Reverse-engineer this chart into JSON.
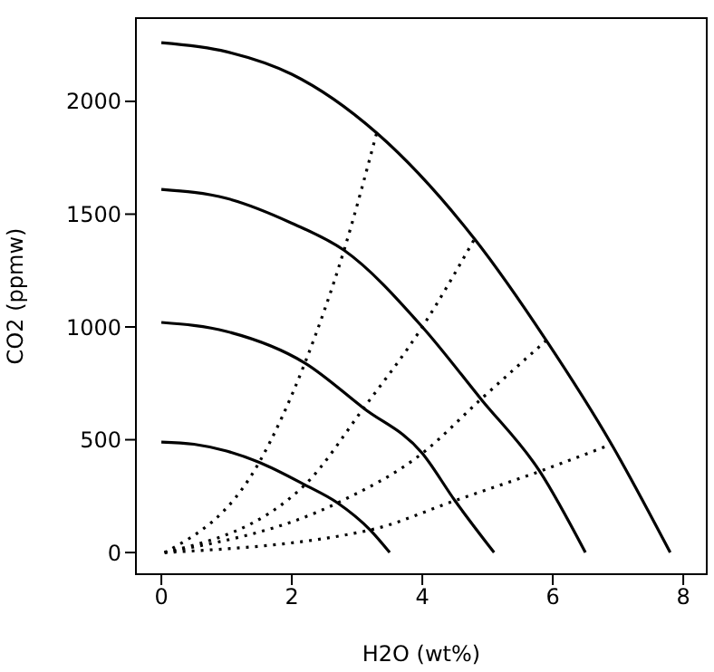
{
  "chart_data": {
    "type": "line",
    "xlabel": "H2O (wt%)",
    "ylabel": "CO2 (ppmw)",
    "xlim": [
      -0.39,
      8.36
    ],
    "ylim": [
      -96,
      2369
    ],
    "xticks": [
      0,
      2,
      4,
      6,
      8
    ],
    "yticks": [
      0,
      500,
      1000,
      1500,
      2000
    ],
    "grid": false,
    "legend": false,
    "marker": "none",
    "series": [
      {
        "color": "#000000",
        "line_style": "solid",
        "x": [
          0,
          0.5,
          1,
          1.5,
          2.2,
          2.7,
          3.2,
          3.5
        ],
        "values": [
          490,
          480,
          450,
          400,
          300,
          220,
          100,
          0
        ]
      },
      {
        "color": "#000000",
        "line_style": "solid",
        "x": [
          0,
          1,
          2.2,
          3.1,
          4,
          4.5,
          5.1
        ],
        "values": [
          1020,
          980,
          840,
          640,
          440,
          230,
          0
        ]
      },
      {
        "color": "#000000",
        "line_style": "solid",
        "x": [
          0,
          1,
          2,
          2.8,
          4,
          4.9,
          5.8,
          6.5
        ],
        "values": [
          1610,
          1570,
          1460,
          1340,
          1000,
          680,
          360,
          0
        ]
      },
      {
        "color": "#000000",
        "line_style": "solid",
        "x": [
          0,
          1,
          2,
          3.3,
          4.8,
          5.9,
          6.9,
          7.8
        ],
        "values": [
          2260,
          2220,
          2120,
          1860,
          1390,
          940,
          480,
          0
        ]
      },
      {
        "color": "#000000",
        "line_style": "dotted",
        "x": [
          0.05,
          1.5,
          2.2,
          2.8,
          3.3
        ],
        "values": [
          0,
          400,
          840,
          1340,
          1860
        ]
      },
      {
        "color": "#000000",
        "line_style": "dotted",
        "x": [
          0.05,
          2.2,
          3.1,
          4,
          4.8
        ],
        "values": [
          0,
          300,
          640,
          1000,
          1390
        ]
      },
      {
        "color": "#000000",
        "line_style": "dotted",
        "x": [
          0.05,
          2.7,
          4,
          4.9,
          5.9
        ],
        "values": [
          0,
          220,
          440,
          680,
          940
        ]
      },
      {
        "color": "#000000",
        "line_style": "dotted",
        "x": [
          0.05,
          3.2,
          4.5,
          5.8,
          6.9
        ],
        "values": [
          0,
          100,
          230,
          360,
          480
        ]
      }
    ]
  }
}
